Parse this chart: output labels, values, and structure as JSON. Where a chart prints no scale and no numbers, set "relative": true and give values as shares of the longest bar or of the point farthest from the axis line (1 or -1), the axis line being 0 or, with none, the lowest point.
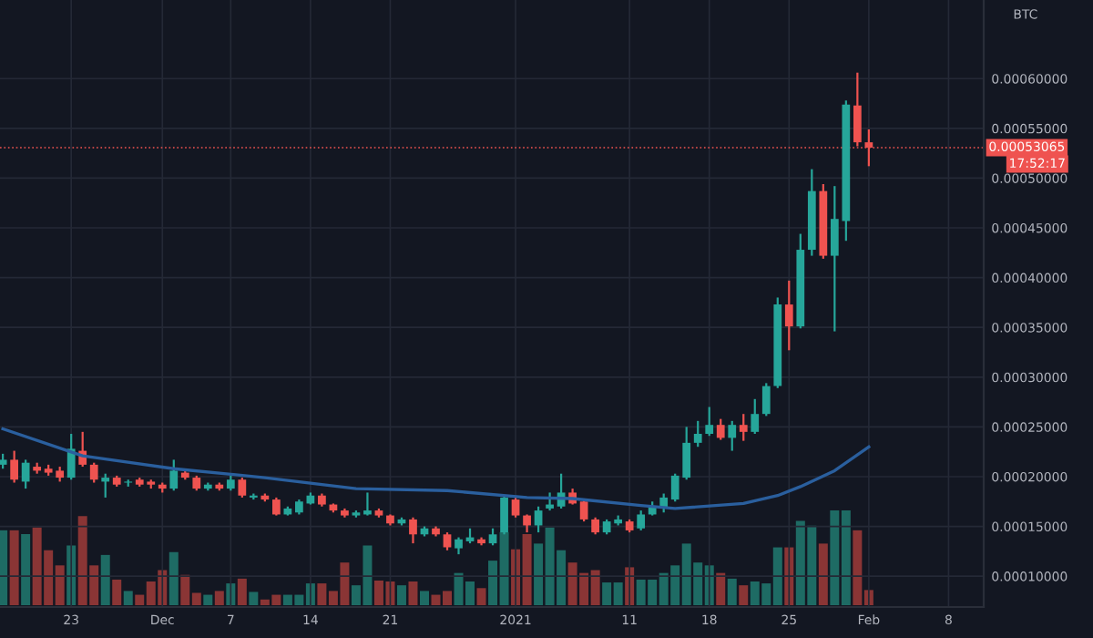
{
  "chart_data": [
    {
      "type": "candlestick",
      "x": [
        "2020-11-17",
        "2020-11-18",
        "2020-11-19",
        "2020-11-20",
        "2020-11-21",
        "2020-11-22",
        "2020-11-23",
        "2020-11-24",
        "2020-11-25",
        "2020-11-26",
        "2020-11-27",
        "2020-11-28",
        "2020-11-29",
        "2020-11-30",
        "2020-12-01",
        "2020-12-02",
        "2020-12-03",
        "2020-12-04",
        "2020-12-05",
        "2020-12-06",
        "2020-12-07",
        "2020-12-08",
        "2020-12-09",
        "2020-12-10",
        "2020-12-11",
        "2020-12-12",
        "2020-12-13",
        "2020-12-14",
        "2020-12-15",
        "2020-12-16",
        "2020-12-17",
        "2020-12-18",
        "2020-12-19",
        "2020-12-20",
        "2020-12-21",
        "2020-12-22",
        "2020-12-23",
        "2020-12-24",
        "2020-12-25",
        "2020-12-26",
        "2020-12-27",
        "2020-12-28",
        "2020-12-29",
        "2020-12-30",
        "2020-12-31",
        "2021-01-01",
        "2021-01-02",
        "2021-01-03",
        "2021-01-04",
        "2021-01-05",
        "2021-01-06",
        "2021-01-07",
        "2021-01-08",
        "2021-01-09",
        "2021-01-10",
        "2021-01-11",
        "2021-01-12",
        "2021-01-13",
        "2021-01-14",
        "2021-01-15",
        "2021-01-16",
        "2021-01-17",
        "2021-01-18",
        "2021-01-19",
        "2021-01-20",
        "2021-01-21",
        "2021-01-22",
        "2021-01-23",
        "2021-01-24",
        "2021-01-25",
        "2021-01-26",
        "2021-01-27",
        "2021-01-28",
        "2021-01-29",
        "2021-01-30",
        "2021-01-31",
        "2021-02-01"
      ],
      "ohlc": [
        [
          0.000212,
          0.000223,
          0.000208,
          0.000217
        ],
        [
          0.000217,
          0.000226,
          0.000194,
          0.000197
        ],
        [
          0.000195,
          0.000217,
          0.000188,
          0.000214
        ],
        [
          0.00021,
          0.000214,
          0.000203,
          0.000206
        ],
        [
          0.000208,
          0.000212,
          0.000201,
          0.000204
        ],
        [
          0.000206,
          0.00021,
          0.000195,
          0.000199
        ],
        [
          0.000199,
          0.000243,
          0.000197,
          0.000228
        ],
        [
          0.000226,
          0.000245,
          0.00021,
          0.000212
        ],
        [
          0.000212,
          0.000214,
          0.000194,
          0.000197
        ],
        [
          0.000195,
          0.000203,
          0.000179,
          0.000199
        ],
        [
          0.000199,
          0.000201,
          0.00019,
          0.000192
        ],
        [
          0.000194,
          0.000197,
          0.00019,
          0.000195
        ],
        [
          0.000197,
          0.000199,
          0.00019,
          0.000192
        ],
        [
          0.000195,
          0.000197,
          0.000188,
          0.000192
        ],
        [
          0.000192,
          0.000194,
          0.000184,
          0.000188
        ],
        [
          0.000188,
          0.000217,
          0.000186,
          0.000206
        ],
        [
          0.000204,
          0.000208,
          0.000197,
          0.000199
        ],
        [
          0.000199,
          0.000201,
          0.000186,
          0.000188
        ],
        [
          0.000188,
          0.000194,
          0.000186,
          0.000192
        ],
        [
          0.000192,
          0.000194,
          0.000186,
          0.000188
        ],
        [
          0.000188,
          0.000201,
          0.000186,
          0.000197
        ],
        [
          0.000197,
          0.000199,
          0.000179,
          0.000181
        ],
        [
          0.000179,
          0.000183,
          0.000177,
          0.000181
        ],
        [
          0.000181,
          0.000183,
          0.000175,
          0.000177
        ],
        [
          0.000177,
          0.000179,
          0.000161,
          0.000162
        ],
        [
          0.000162,
          0.00017,
          0.000161,
          0.000168
        ],
        [
          0.000164,
          0.000177,
          0.000162,
          0.000175
        ],
        [
          0.000173,
          0.000184,
          0.000172,
          0.000181
        ],
        [
          0.000181,
          0.000183,
          0.00017,
          0.000172
        ],
        [
          0.000172,
          0.000173,
          0.000164,
          0.000166
        ],
        [
          0.000166,
          0.000168,
          0.000159,
          0.000161
        ],
        [
          0.000161,
          0.000166,
          0.000159,
          0.000164
        ],
        [
          0.000162,
          0.000184,
          0.000161,
          0.000166
        ],
        [
          0.000166,
          0.000168,
          0.000159,
          0.000161
        ],
        [
          0.000161,
          0.000162,
          0.000151,
          0.000153
        ],
        [
          0.000153,
          0.000159,
          0.000151,
          0.000157
        ],
        [
          0.000157,
          0.000159,
          0.000133,
          0.000142
        ],
        [
          0.000142,
          0.00015,
          0.00014,
          0.000148
        ],
        [
          0.000148,
          0.00015,
          0.00014,
          0.000142
        ],
        [
          0.000142,
          0.000144,
          0.000126,
          0.000129
        ],
        [
          0.000128,
          0.000139,
          0.000122,
          0.000137
        ],
        [
          0.000135,
          0.000148,
          0.000133,
          0.000139
        ],
        [
          0.000137,
          0.000139,
          0.000131,
          0.000133
        ],
        [
          0.000133,
          0.000148,
          0.000131,
          0.000142
        ],
        [
          0.000144,
          0.000181,
          0.000142,
          0.000179
        ],
        [
          0.000177,
          0.000179,
          0.000159,
          0.000161
        ],
        [
          0.000161,
          0.000162,
          0.000144,
          0.000151
        ],
        [
          0.000151,
          0.00017,
          0.000144,
          0.000166
        ],
        [
          0.000168,
          0.000184,
          0.000166,
          0.000172
        ],
        [
          0.00017,
          0.000203,
          0.000168,
          0.000184
        ],
        [
          0.000184,
          0.000188,
          0.000172,
          0.000173
        ],
        [
          0.000175,
          0.000177,
          0.000155,
          0.000157
        ],
        [
          0.000157,
          0.000159,
          0.000142,
          0.000144
        ],
        [
          0.000144,
          0.000157,
          0.000142,
          0.000155
        ],
        [
          0.000153,
          0.000161,
          0.000151,
          0.000157
        ],
        [
          0.000155,
          0.000157,
          0.000144,
          0.000146
        ],
        [
          0.000148,
          0.000166,
          0.000146,
          0.000162
        ],
        [
          0.000162,
          0.000175,
          0.000161,
          0.00017
        ],
        [
          0.000168,
          0.000183,
          0.000164,
          0.000179
        ],
        [
          0.000177,
          0.000203,
          0.000175,
          0.000201
        ],
        [
          0.000199,
          0.00025,
          0.000197,
          0.000234
        ],
        [
          0.000234,
          0.000256,
          0.00023,
          0.000243
        ],
        [
          0.000243,
          0.00027,
          0.000241,
          0.000252
        ],
        [
          0.000252,
          0.000258,
          0.000237,
          0.000239
        ],
        [
          0.000239,
          0.000256,
          0.000226,
          0.000252
        ],
        [
          0.000252,
          0.000263,
          0.000236,
          0.000245
        ],
        [
          0.000245,
          0.000278,
          0.000243,
          0.000263
        ],
        [
          0.000263,
          0.000294,
          0.000261,
          0.000291
        ],
        [
          0.000291,
          0.00038,
          0.000289,
          0.000373
        ],
        [
          0.000373,
          0.000397,
          0.000327,
          0.000351
        ],
        [
          0.000351,
          0.000444,
          0.000349,
          0.000428
        ],
        [
          0.000428,
          0.000509,
          0.000422,
          0.000487
        ],
        [
          0.000487,
          0.000494,
          0.000419,
          0.000422
        ],
        [
          0.000422,
          0.000492,
          0.000346,
          0.000459
        ],
        [
          0.000457,
          0.000578,
          0.000437,
          0.000574
        ],
        [
          0.000573,
          0.000606,
          0.000532,
          0.000536
        ],
        [
          0.000536,
          0.000549,
          0.000512,
          0.00053065
        ]
      ],
      "colors": [
        "#26a69a",
        "#ef5350",
        "#26a69a",
        "#ef5350",
        "#ef5350",
        "#ef5350",
        "#26a69a",
        "#ef5350",
        "#ef5350",
        "#26a69a",
        "#ef5350",
        "#26a69a",
        "#ef5350",
        "#ef5350",
        "#ef5350",
        "#26a69a",
        "#ef5350",
        "#ef5350",
        "#26a69a",
        "#ef5350",
        "#26a69a",
        "#ef5350",
        "#26a69a",
        "#ef5350",
        "#ef5350",
        "#26a69a",
        "#26a69a",
        "#26a69a",
        "#ef5350",
        "#ef5350",
        "#ef5350",
        "#26a69a",
        "#26a69a",
        "#ef5350",
        "#ef5350",
        "#26a69a",
        "#ef5350",
        "#26a69a",
        "#ef5350",
        "#ef5350",
        "#26a69a",
        "#26a69a",
        "#ef5350",
        "#26a69a",
        "#26a69a",
        "#ef5350",
        "#ef5350",
        "#26a69a",
        "#26a69a",
        "#26a69a",
        "#ef5350",
        "#ef5350",
        "#ef5350",
        "#26a69a",
        "#26a69a",
        "#ef5350",
        "#26a69a",
        "#26a69a",
        "#26a69a",
        "#26a69a",
        "#26a69a",
        "#26a69a",
        "#26a69a",
        "#ef5350",
        "#26a69a",
        "#ef5350",
        "#26a69a",
        "#26a69a",
        "#26a69a",
        "#ef5350",
        "#26a69a",
        "#26a69a",
        "#ef5350",
        "#26a69a",
        "#26a69a",
        "#ef5350",
        "#ef5350"
      ],
      "series": [
        {
          "type": "line",
          "color": "#2a5f9e",
          "x": [
            "2020-11-17",
            "2020-11-24",
            "2020-12-02",
            "2020-12-10",
            "2020-12-18",
            "2020-12-26",
            "2021-01-02",
            "2021-01-06",
            "2021-01-12",
            "2021-01-15",
            "2021-01-21",
            "2021-01-24",
            "2021-01-26",
            "2021-01-29",
            "2021-02-01"
          ],
          "values": [
            0.000248,
            0.000221,
            0.000208,
            0.000199,
            0.000188,
            0.000186,
            0.000179,
            0.000178,
            0.000171,
            0.000168,
            0.000173,
            0.000181,
            0.00019,
            0.000206,
            0.00023
          ]
        }
      ],
      "xlim": [
        "2020-11-16T18:00",
        "2021-02-11T02:00"
      ],
      "xticks": [
        {
          "value": "2020-11-23",
          "label": "23"
        },
        {
          "value": "2020-12-01",
          "label": "Dec"
        },
        {
          "value": "2020-12-07",
          "label": "7"
        },
        {
          "value": "2020-12-14",
          "label": "14"
        },
        {
          "value": "2020-12-21",
          "label": "21"
        },
        {
          "value": "2021-01-01",
          "label": "2021"
        },
        {
          "value": "2021-01-11",
          "label": "11"
        },
        {
          "value": "2021-01-18",
          "label": "18"
        },
        {
          "value": "2021-01-25",
          "label": "25"
        },
        {
          "value": "2021-02-01",
          "label": "Feb"
        },
        {
          "value": "2021-02-08",
          "label": "8"
        }
      ],
      "ylim": [
        6.9e-05,
        0.000679
      ],
      "yticks": [
        {
          "value": 0.0001,
          "label": "0.00010000"
        },
        {
          "value": 0.00015,
          "label": "0.00015000"
        },
        {
          "value": 0.0002,
          "label": "0.00020000"
        },
        {
          "value": 0.00025,
          "label": "0.00025000"
        },
        {
          "value": 0.0003,
          "label": "0.00030000"
        },
        {
          "value": 0.00035,
          "label": "0.00035000"
        },
        {
          "value": 0.0004,
          "label": "0.00040000"
        },
        {
          "value": 0.00045,
          "label": "0.00045000"
        },
        {
          "value": 0.0005,
          "label": "0.00050000"
        },
        {
          "value": 0.00055,
          "label": "0.00055000"
        },
        {
          "value": 0.0006,
          "label": "0.00060000"
        }
      ],
      "ref_lines": [
        {
          "axis": "y",
          "value": 0.00053065,
          "label": "0.00053065",
          "color": "#ef5350",
          "line_style": "dotted"
        }
      ],
      "annotations": [
        "17:52:17",
        "BTC"
      ],
      "grid": true
    },
    {
      "type": "bar",
      "relative": true,
      "x": [
        "2020-11-17",
        "2020-11-18",
        "2020-11-19",
        "2020-11-20",
        "2020-11-21",
        "2020-11-22",
        "2020-11-23",
        "2020-11-24",
        "2020-11-25",
        "2020-11-26",
        "2020-11-27",
        "2020-11-28",
        "2020-11-29",
        "2020-11-30",
        "2020-12-01",
        "2020-12-02",
        "2020-12-03",
        "2020-12-04",
        "2020-12-05",
        "2020-12-06",
        "2020-12-07",
        "2020-12-08",
        "2020-12-09",
        "2020-12-10",
        "2020-12-11",
        "2020-12-12",
        "2020-12-13",
        "2020-12-14",
        "2020-12-15",
        "2020-12-16",
        "2020-12-17",
        "2020-12-18",
        "2020-12-19",
        "2020-12-20",
        "2020-12-21",
        "2020-12-22",
        "2020-12-23",
        "2020-12-24",
        "2020-12-25",
        "2020-12-26",
        "2020-12-27",
        "2020-12-28",
        "2020-12-29",
        "2020-12-30",
        "2020-12-31",
        "2021-01-01",
        "2021-01-02",
        "2021-01-03",
        "2021-01-04",
        "2021-01-05",
        "2021-01-06",
        "2021-01-07",
        "2021-01-08",
        "2021-01-09",
        "2021-01-10",
        "2021-01-11",
        "2021-01-12",
        "2021-01-13",
        "2021-01-14",
        "2021-01-15",
        "2021-01-16",
        "2021-01-17",
        "2021-01-18",
        "2021-01-19",
        "2021-01-20",
        "2021-01-21",
        "2021-01-22",
        "2021-01-23",
        "2021-01-24",
        "2021-01-25",
        "2021-01-26",
        "2021-01-27",
        "2021-01-28",
        "2021-01-29",
        "2021-01-30",
        "2021-01-31",
        "2021-02-01"
      ],
      "values": [
        0.79,
        0.79,
        0.75,
        0.82,
        0.58,
        0.42,
        0.63,
        0.94,
        0.42,
        0.53,
        0.27,
        0.15,
        0.11,
        0.25,
        0.37,
        0.56,
        0.32,
        0.13,
        0.11,
        0.15,
        0.23,
        0.28,
        0.14,
        0.06,
        0.11,
        0.11,
        0.11,
        0.23,
        0.23,
        0.15,
        0.45,
        0.21,
        0.63,
        0.26,
        0.25,
        0.21,
        0.25,
        0.15,
        0.11,
        0.15,
        0.34,
        0.25,
        0.18,
        0.47,
        0.77,
        0.59,
        0.75,
        0.65,
        0.82,
        0.58,
        0.45,
        0.34,
        0.37,
        0.24,
        0.24,
        0.4,
        0.27,
        0.27,
        0.34,
        0.42,
        0.65,
        0.45,
        0.42,
        0.34,
        0.28,
        0.21,
        0.25,
        0.23,
        0.61,
        0.61,
        0.89,
        0.84,
        0.65,
        1,
        1,
        0.79,
        0.16
      ],
      "colors": [
        "#1e6b64",
        "#8a3535",
        "#1e6b64",
        "#8a3535",
        "#8a3535",
        "#8a3535",
        "#1e6b64",
        "#8a3535",
        "#8a3535",
        "#1e6b64",
        "#8a3535",
        "#1e6b64",
        "#8a3535",
        "#8a3535",
        "#8a3535",
        "#1e6b64",
        "#8a3535",
        "#8a3535",
        "#1e6b64",
        "#8a3535",
        "#1e6b64",
        "#8a3535",
        "#1e6b64",
        "#8a3535",
        "#8a3535",
        "#1e6b64",
        "#1e6b64",
        "#1e6b64",
        "#8a3535",
        "#8a3535",
        "#8a3535",
        "#1e6b64",
        "#1e6b64",
        "#8a3535",
        "#8a3535",
        "#1e6b64",
        "#8a3535",
        "#1e6b64",
        "#8a3535",
        "#8a3535",
        "#1e6b64",
        "#1e6b64",
        "#8a3535",
        "#1e6b64",
        "#1e6b64",
        "#8a3535",
        "#8a3535",
        "#1e6b64",
        "#1e6b64",
        "#1e6b64",
        "#8a3535",
        "#8a3535",
        "#8a3535",
        "#1e6b64",
        "#1e6b64",
        "#8a3535",
        "#1e6b64",
        "#1e6b64",
        "#1e6b64",
        "#1e6b64",
        "#1e6b64",
        "#1e6b64",
        "#1e6b64",
        "#8a3535",
        "#1e6b64",
        "#8a3535",
        "#1e6b64",
        "#1e6b64",
        "#1e6b64",
        "#8a3535",
        "#1e6b64",
        "#1e6b64",
        "#8a3535",
        "#1e6b64",
        "#1e6b64",
        "#8a3535",
        "#8a3535"
      ],
      "xlim": [
        "2020-11-16T18:00",
        "2021-02-11T02:00"
      ]
    }
  ]
}
